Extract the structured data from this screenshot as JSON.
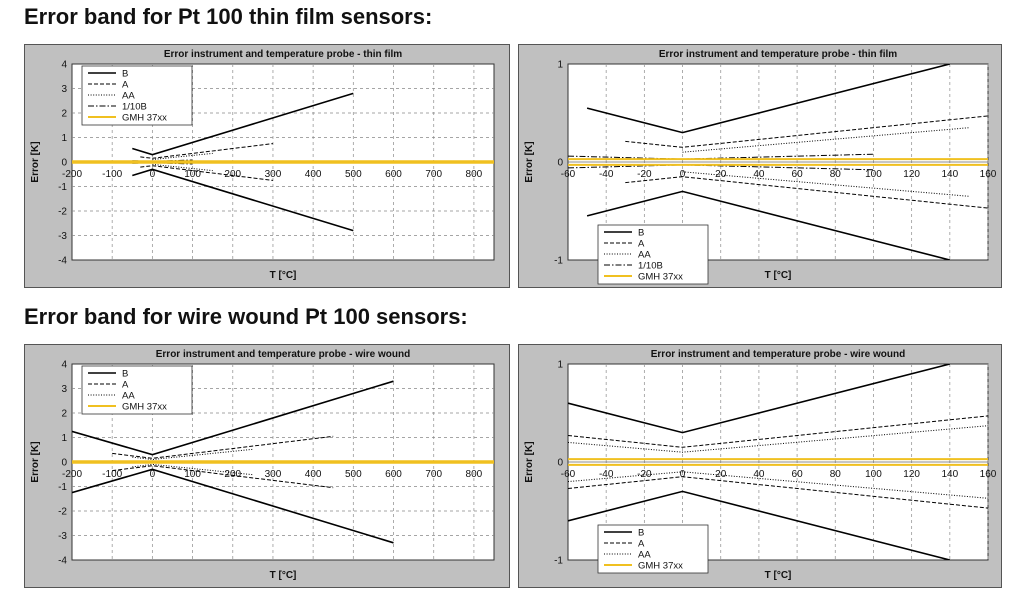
{
  "headings": {
    "thin_film": "Error band for Pt 100 thin film sensors:",
    "wire_wound": "Error band for wire wound Pt 100 sensors:"
  },
  "colors": {
    "panel_bg": "#c0c0c0",
    "plot_bg": "#ffffff",
    "gmh_line": "#f0c020",
    "series_line": "#000000"
  },
  "chart_data": [
    {
      "type": "line",
      "title": "Error instrument and temperature probe - thin film",
      "xlabel": "T [°C]",
      "ylabel": "Error [K]",
      "xlim": [
        -200,
        850
      ],
      "ylim": [
        -4,
        4
      ],
      "xticks": [
        -200,
        -100,
        0,
        100,
        200,
        300,
        400,
        500,
        600,
        700,
        800
      ],
      "yticks": [
        -4,
        -3,
        -2,
        -1,
        0,
        1,
        2,
        3,
        4
      ],
      "legend_position": "top-left",
      "series": [
        {
          "name": "B",
          "dash": "solid",
          "upper": [
            [
              -50,
              0.55
            ],
            [
              0,
              0.3
            ],
            [
              500,
              2.8
            ]
          ],
          "lower": [
            [
              -50,
              -0.55
            ],
            [
              0,
              -0.3
            ],
            [
              500,
              -2.8
            ]
          ]
        },
        {
          "name": "A",
          "dash": "dashed",
          "upper": [
            [
              -30,
              0.21
            ],
            [
              0,
              0.15
            ],
            [
              300,
              0.75
            ]
          ],
          "lower": [
            [
              -30,
              -0.21
            ],
            [
              0,
              -0.15
            ],
            [
              300,
              -0.75
            ]
          ]
        },
        {
          "name": "AA",
          "dash": "dotted",
          "upper": [
            [
              0,
              0.1
            ],
            [
              150,
              0.35
            ]
          ],
          "lower": [
            [
              0,
              -0.1
            ],
            [
              150,
              -0.35
            ]
          ]
        },
        {
          "name": "1/10B",
          "dash": "dashdot",
          "upper": [
            [
              -50,
              0.055
            ],
            [
              0,
              0.03
            ],
            [
              100,
              0.08
            ]
          ],
          "lower": [
            [
              -50,
              -0.055
            ],
            [
              0,
              -0.03
            ],
            [
              100,
              -0.08
            ]
          ]
        },
        {
          "name": "GMH 37xx",
          "dash": "gmh",
          "upper": [
            [
              -200,
              0.03
            ],
            [
              850,
              0.03
            ]
          ],
          "lower": [
            [
              -200,
              -0.03
            ],
            [
              850,
              -0.03
            ]
          ]
        }
      ]
    },
    {
      "type": "line",
      "title": "Error instrument and temperature probe - thin film",
      "xlabel": "T [°C]",
      "ylabel": "Error [K]",
      "xlim": [
        -60,
        160
      ],
      "ylim": [
        -1,
        1
      ],
      "xticks": [
        -60,
        -40,
        -20,
        0,
        20,
        40,
        60,
        80,
        100,
        120,
        140,
        160
      ],
      "yticks": [
        -1,
        0,
        1
      ],
      "legend_position": "bottom-left",
      "series": [
        {
          "name": "B",
          "dash": "solid",
          "upper": [
            [
              -50,
              0.55
            ],
            [
              0,
              0.3
            ],
            [
              140,
              1.0
            ]
          ],
          "lower": [
            [
              -50,
              -0.55
            ],
            [
              0,
              -0.3
            ],
            [
              140,
              -1.0
            ]
          ]
        },
        {
          "name": "A",
          "dash": "dashed",
          "upper": [
            [
              -30,
              0.21
            ],
            [
              0,
              0.15
            ],
            [
              160,
              0.47
            ]
          ],
          "lower": [
            [
              -30,
              -0.21
            ],
            [
              0,
              -0.15
            ],
            [
              160,
              -0.47
            ]
          ]
        },
        {
          "name": "AA",
          "dash": "dotted",
          "upper": [
            [
              0,
              0.1
            ],
            [
              150,
              0.35
            ]
          ],
          "lower": [
            [
              0,
              -0.1
            ],
            [
              150,
              -0.35
            ]
          ]
        },
        {
          "name": "1/10B",
          "dash": "dashdot",
          "upper": [
            [
              -60,
              0.06
            ],
            [
              0,
              0.03
            ],
            [
              100,
              0.08
            ]
          ],
          "lower": [
            [
              -60,
              -0.06
            ],
            [
              0,
              -0.03
            ],
            [
              100,
              -0.08
            ]
          ]
        },
        {
          "name": "GMH 37xx",
          "dash": "gmh",
          "upper": [
            [
              -60,
              0.03
            ],
            [
              160,
              0.03
            ]
          ],
          "lower": [
            [
              -60,
              -0.03
            ],
            [
              160,
              -0.03
            ]
          ]
        }
      ]
    },
    {
      "type": "line",
      "title": "Error instrument and temperature probe - wire wound",
      "xlabel": "T [°C]",
      "ylabel": "Error [K]",
      "xlim": [
        -200,
        850
      ],
      "ylim": [
        -4,
        4
      ],
      "xticks": [
        -200,
        -100,
        0,
        100,
        200,
        300,
        400,
        500,
        600,
        700,
        800
      ],
      "yticks": [
        -4,
        -3,
        -2,
        -1,
        0,
        1,
        2,
        3,
        4
      ],
      "legend_position": "top-left",
      "series": [
        {
          "name": "B",
          "dash": "solid",
          "upper": [
            [
              -200,
              1.25
            ],
            [
              0,
              0.3
            ],
            [
              600,
              3.3
            ]
          ],
          "lower": [
            [
              -200,
              -1.25
            ],
            [
              0,
              -0.3
            ],
            [
              600,
              -3.3
            ]
          ]
        },
        {
          "name": "A",
          "dash": "dashed",
          "upper": [
            [
              -100,
              0.35
            ],
            [
              0,
              0.15
            ],
            [
              450,
              1.05
            ]
          ],
          "lower": [
            [
              -100,
              -0.35
            ],
            [
              0,
              -0.15
            ],
            [
              450,
              -1.05
            ]
          ]
        },
        {
          "name": "AA",
          "dash": "dotted",
          "upper": [
            [
              -50,
              0.2
            ],
            [
              0,
              0.1
            ],
            [
              250,
              0.52
            ]
          ],
          "lower": [
            [
              -50,
              -0.2
            ],
            [
              0,
              -0.1
            ],
            [
              250,
              -0.52
            ]
          ]
        },
        {
          "name": "GMH 37xx",
          "dash": "gmh",
          "upper": [
            [
              -200,
              0.03
            ],
            [
              850,
              0.03
            ]
          ],
          "lower": [
            [
              -200,
              -0.03
            ],
            [
              850,
              -0.03
            ]
          ]
        }
      ]
    },
    {
      "type": "line",
      "title": "Error instrument and temperature probe - wire wound",
      "xlabel": "T [°C]",
      "ylabel": "Error [K]",
      "xlim": [
        -60,
        160
      ],
      "ylim": [
        -1,
        1
      ],
      "xticks": [
        -60,
        -40,
        -20,
        0,
        20,
        40,
        60,
        80,
        100,
        120,
        140,
        160
      ],
      "yticks": [
        -1,
        0,
        1
      ],
      "legend_position": "bottom-left",
      "series": [
        {
          "name": "B",
          "dash": "solid",
          "upper": [
            [
              -60,
              0.6
            ],
            [
              0,
              0.3
            ],
            [
              140,
              1.0
            ]
          ],
          "lower": [
            [
              -60,
              -0.6
            ],
            [
              0,
              -0.3
            ],
            [
              140,
              -1.0
            ]
          ]
        },
        {
          "name": "A",
          "dash": "dashed",
          "upper": [
            [
              -60,
              0.27
            ],
            [
              0,
              0.15
            ],
            [
              160,
              0.47
            ]
          ],
          "lower": [
            [
              -60,
              -0.27
            ],
            [
              0,
              -0.15
            ],
            [
              160,
              -0.47
            ]
          ]
        },
        {
          "name": "AA",
          "dash": "dotted",
          "upper": [
            [
              -60,
              0.2
            ],
            [
              0,
              0.1
            ],
            [
              160,
              0.37
            ]
          ],
          "lower": [
            [
              -60,
              -0.2
            ],
            [
              0,
              -0.1
            ],
            [
              160,
              -0.37
            ]
          ]
        },
        {
          "name": "GMH 37xx",
          "dash": "gmh",
          "upper": [
            [
              -60,
              0.03
            ],
            [
              160,
              0.03
            ]
          ],
          "lower": [
            [
              -60,
              -0.03
            ],
            [
              160,
              -0.03
            ]
          ]
        }
      ]
    }
  ]
}
